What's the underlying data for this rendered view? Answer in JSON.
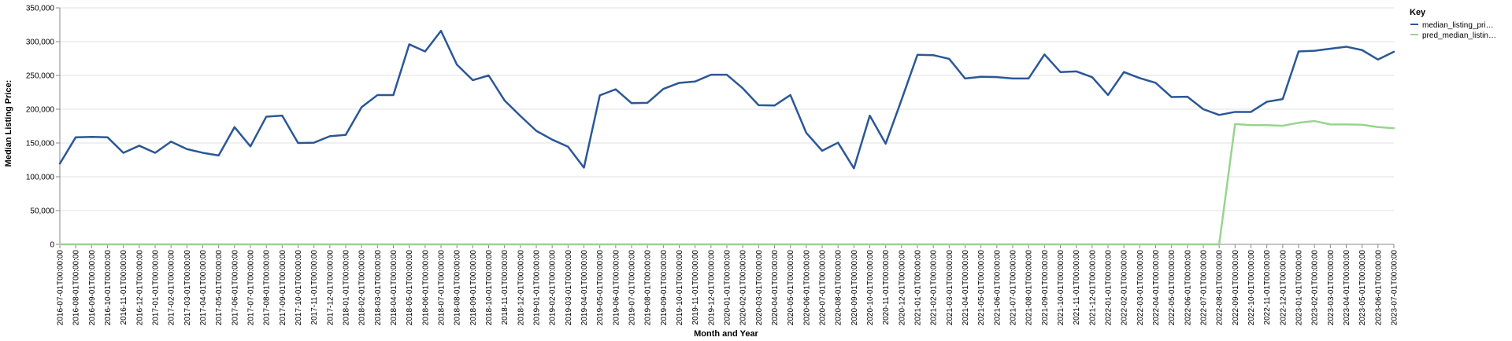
{
  "chart_data": {
    "type": "line",
    "xlabel": "Month and Year",
    "ylabel": "Median Listing Price:",
    "ylim": [
      0,
      350000
    ],
    "yticks": [
      "0",
      "50,000",
      "100,000",
      "150,000",
      "200,000",
      "250,000",
      "300,000",
      "350,000"
    ],
    "grid": "horizontal",
    "legend": {
      "title": "Key",
      "placement": "top-right",
      "entries": [
        "median_listing_pri…",
        "pred_median_listin…"
      ]
    },
    "x": [
      "2016-07-01T00:00:00",
      "2016-08-01T00:00:00",
      "2016-09-01T00:00:00",
      "2016-10-01T00:00:00",
      "2016-11-01T00:00:00",
      "2016-12-01T00:00:00",
      "2017-01-01T00:00:00",
      "2017-02-01T00:00:00",
      "2017-03-01T00:00:00",
      "2017-04-01T00:00:00",
      "2017-05-01T00:00:00",
      "2017-06-01T00:00:00",
      "2017-07-01T00:00:00",
      "2017-08-01T00:00:00",
      "2017-09-01T00:00:00",
      "2017-10-01T00:00:00",
      "2017-11-01T00:00:00",
      "2017-12-01T00:00:00",
      "2018-01-01T00:00:00",
      "2018-02-01T00:00:00",
      "2018-03-01T00:00:00",
      "2018-04-01T00:00:00",
      "2018-05-01T00:00:00",
      "2018-06-01T00:00:00",
      "2018-07-01T00:00:00",
      "2018-08-01T00:00:00",
      "2018-09-01T00:00:00",
      "2018-10-01T00:00:00",
      "2018-11-01T00:00:00",
      "2018-12-01T00:00:00",
      "2019-01-01T00:00:00",
      "2019-02-01T00:00:00",
      "2019-03-01T00:00:00",
      "2019-04-01T00:00:00",
      "2019-05-01T00:00:00",
      "2019-06-01T00:00:00",
      "2019-07-01T00:00:00",
      "2019-08-01T00:00:00",
      "2019-09-01T00:00:00",
      "2019-10-01T00:00:00",
      "2019-11-01T00:00:00",
      "2019-12-01T00:00:00",
      "2020-01-01T00:00:00",
      "2020-02-01T00:00:00",
      "2020-03-01T00:00:00",
      "2020-04-01T00:00:00",
      "2020-05-01T00:00:00",
      "2020-06-01T00:00:00",
      "2020-07-01T00:00:00",
      "2020-08-01T00:00:00",
      "2020-09-01T00:00:00",
      "2020-10-01T00:00:00",
      "2020-11-01T00:00:00",
      "2020-12-01T00:00:00",
      "2021-01-01T00:00:00",
      "2021-02-01T00:00:00",
      "2021-03-01T00:00:00",
      "2021-04-01T00:00:00",
      "2021-05-01T00:00:00",
      "2021-06-01T00:00:00",
      "2021-07-01T00:00:00",
      "2021-08-01T00:00:00",
      "2021-09-01T00:00:00",
      "2021-10-01T00:00:00",
      "2021-11-01T00:00:00",
      "2021-12-01T00:00:00",
      "2022-01-01T00:00:00",
      "2022-02-01T00:00:00",
      "2022-03-01T00:00:00",
      "2022-04-01T00:00:00",
      "2022-05-01T00:00:00",
      "2022-06-01T00:00:00",
      "2022-07-01T00:00:00",
      "2022-08-01T00:00:00",
      "2022-09-01T00:00:00",
      "2022-10-01T00:00:00",
      "2022-11-01T00:00:00",
      "2022-12-01T00:00:00",
      "2023-01-01T00:00:00",
      "2023-02-01T00:00:00",
      "2023-03-01T00:00:00",
      "2023-04-01T00:00:00",
      "2023-05-01T00:00:00",
      "2023-06-01T00:00:00",
      "2023-07-01T00:00:00"
    ],
    "series": [
      {
        "name": "median_listing_pri…",
        "color": "#2b5797",
        "values": [
          119500,
          158500,
          159000,
          158500,
          135500,
          146000,
          135500,
          152000,
          141000,
          135500,
          131500,
          173500,
          145000,
          189000,
          190500,
          150000,
          150500,
          160000,
          162000,
          203000,
          221000,
          221000,
          296000,
          285500,
          316000,
          266000,
          243000,
          250000,
          213000,
          190000,
          168000,
          155000,
          144500,
          113500,
          220500,
          229500,
          209000,
          209500,
          230000,
          239000,
          241000,
          251000,
          251000,
          231000,
          206000,
          205500,
          221000,
          165000,
          138500,
          150500,
          112500,
          190500,
          149000,
          214000,
          280500,
          280000,
          274500,
          245500,
          248000,
          247500,
          245500,
          245500,
          281000,
          255000,
          256000,
          247500,
          221000,
          255000,
          246000,
          239000,
          218000,
          218500,
          200000,
          191500,
          196000,
          196000,
          211000,
          215000,
          285500,
          286500,
          289500,
          292500,
          287500,
          273500,
          285000
        ]
      },
      {
        "name": "pred_median_listin…",
        "color": "#98d48e",
        "values": [
          0,
          0,
          0,
          0,
          0,
          0,
          0,
          0,
          0,
          0,
          0,
          0,
          0,
          0,
          0,
          0,
          0,
          0,
          0,
          0,
          0,
          0,
          0,
          0,
          0,
          0,
          0,
          0,
          0,
          0,
          0,
          0,
          0,
          0,
          0,
          0,
          0,
          0,
          0,
          0,
          0,
          0,
          0,
          0,
          0,
          0,
          0,
          0,
          0,
          0,
          0,
          0,
          0,
          0,
          0,
          0,
          0,
          0,
          0,
          0,
          0,
          0,
          0,
          0,
          0,
          0,
          0,
          0,
          0,
          0,
          0,
          0,
          0,
          0,
          178000,
          176500,
          176500,
          175500,
          180000,
          182500,
          177500,
          177500,
          177000,
          173500,
          172000
        ]
      }
    ]
  }
}
